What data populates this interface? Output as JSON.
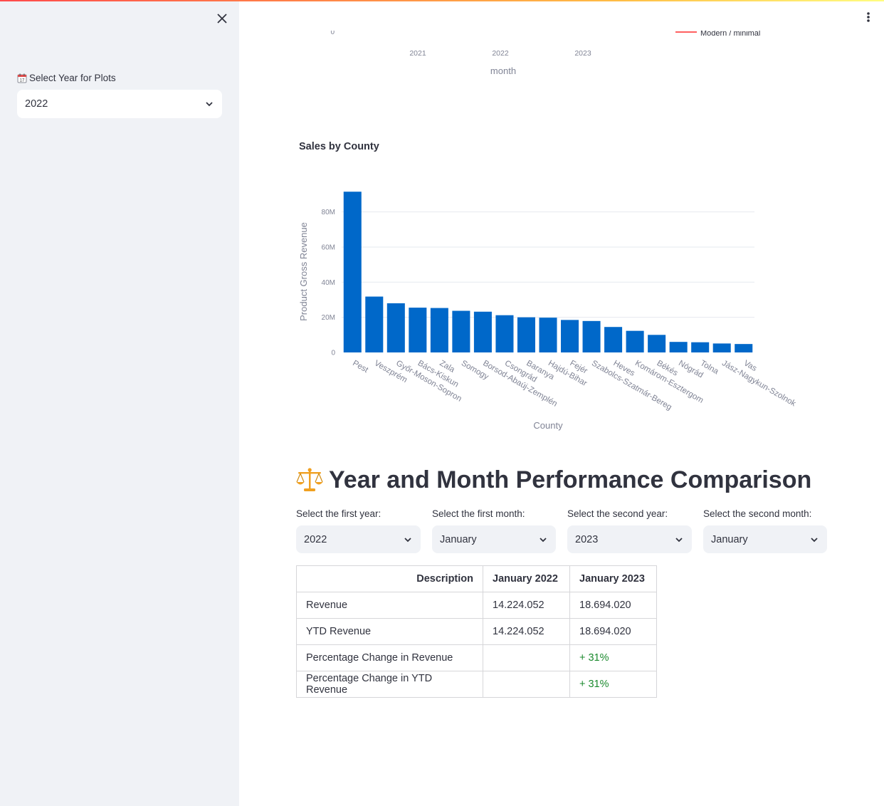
{
  "sidebar": {
    "year_label": "Select Year for Plots",
    "year_value": "2022"
  },
  "top_chart_fragment": {
    "y_tick": "0",
    "x_ticks": [
      "2021",
      "2022",
      "2023"
    ],
    "xlabel": "month",
    "legend_partial": "Modern / minimal"
  },
  "chart_data": {
    "type": "bar",
    "title": "Sales by County",
    "xlabel": "County",
    "ylabel": "Product Gross Revenue",
    "ylim": [
      0,
      92000000
    ],
    "yticks": [
      0,
      20000000,
      40000000,
      60000000,
      80000000
    ],
    "ytick_labels": [
      "0",
      "20M",
      "40M",
      "60M",
      "80M"
    ],
    "grid": true,
    "bar_color": "#0068c9",
    "categories": [
      "Pest",
      "Veszprém",
      "Győr-Moson-Sopron",
      "Bács-Kiskun",
      "Zala",
      "Somogy",
      "Borsod-Abaúj-Zemplén",
      "Csongrád",
      "Baranya",
      "Hajdú-Bihar",
      "Fejér",
      "Szabolcs-Szatmár-Bereg",
      "Heves",
      "Komárom-Esztergom",
      "Békés",
      "Nógrád",
      "Tolna",
      "Jász-Nagykun-Szolnok",
      "Vas"
    ],
    "values": [
      91500000,
      31800000,
      28000000,
      25500000,
      25300000,
      23700000,
      23200000,
      21200000,
      20000000,
      19800000,
      18500000,
      17900000,
      14500000,
      12300000,
      10000000,
      6000000,
      5800000,
      5100000,
      4800000
    ]
  },
  "comparison": {
    "title": "Year and Month Performance Comparison",
    "first_year_label": "Select the first year:",
    "first_year_value": "2022",
    "first_month_label": "Select the first month:",
    "first_month_value": "January",
    "second_year_label": "Select the second year:",
    "second_year_value": "2023",
    "second_month_label": "Select the second month:",
    "second_month_value": "January",
    "table": {
      "headers": [
        "Description",
        "January 2022",
        "January 2023"
      ],
      "rows": [
        {
          "desc": "Revenue",
          "a": "14.224.052",
          "b": "18.694.020"
        },
        {
          "desc": "YTD Revenue",
          "a": "14.224.052",
          "b": "18.694.020"
        },
        {
          "desc": "Percentage Change in Revenue",
          "a": "",
          "b": "+ 31%"
        },
        {
          "desc": "Percentage Change in YTD Revenue",
          "a": "",
          "b": "+ 31%"
        }
      ]
    }
  },
  "colors": {
    "accent": "#ff4b4b",
    "bar": "#0068c9",
    "positive": "#09ab3b"
  }
}
